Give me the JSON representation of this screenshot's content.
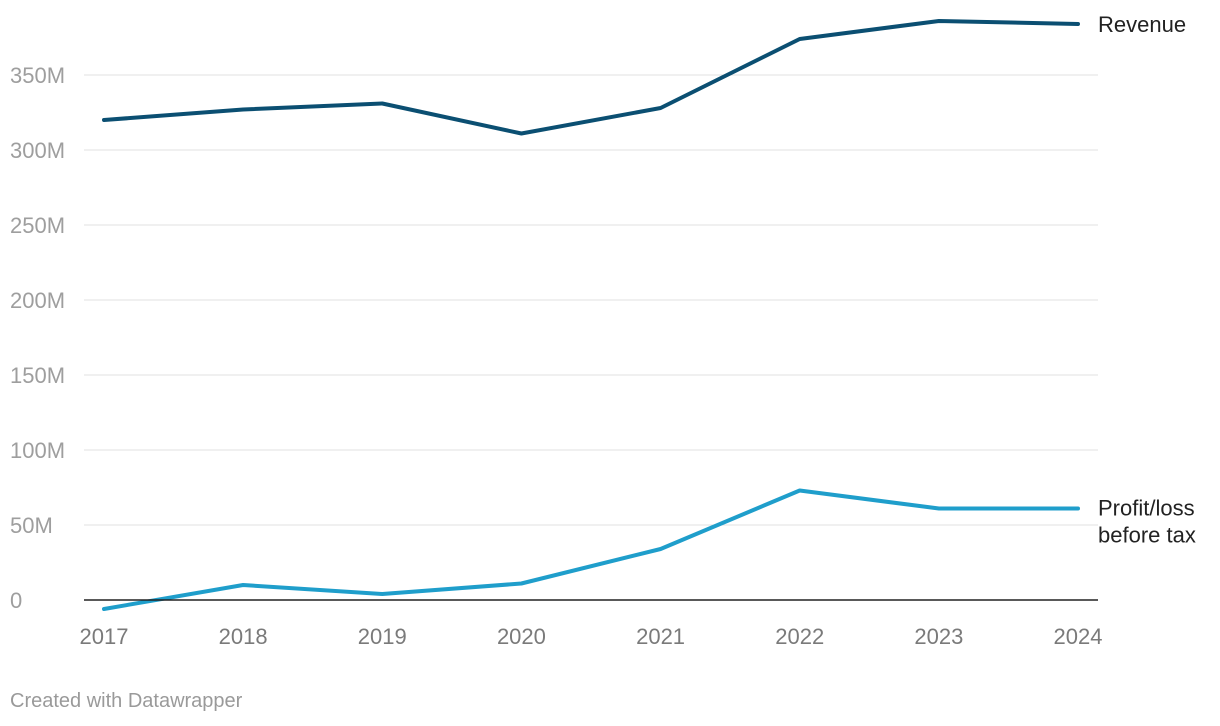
{
  "footer": {
    "credit": "Created with Datawrapper"
  },
  "colors": {
    "revenue": "#0b4f72",
    "profit": "#1f9ecb",
    "grid": "#e0e0e0",
    "baseline": "#222222"
  },
  "chart_data": {
    "type": "line",
    "x": [
      "2017",
      "2018",
      "2019",
      "2020",
      "2021",
      "2022",
      "2023",
      "2024"
    ],
    "ylim": [
      -7,
      385
    ],
    "y_ticks": [
      {
        "value": 0,
        "label": "0"
      },
      {
        "value": 50,
        "label": "50M"
      },
      {
        "value": 100,
        "label": "100M"
      },
      {
        "value": 150,
        "label": "150M"
      },
      {
        "value": 200,
        "label": "200M"
      },
      {
        "value": 250,
        "label": "250M"
      },
      {
        "value": 300,
        "label": "300M"
      },
      {
        "value": 350,
        "label": "350M"
      }
    ],
    "grid": true,
    "legend": "direct labels at line ends (right)",
    "series": [
      {
        "name": "Revenue",
        "label_lines": [
          "Revenue"
        ],
        "color": "#0b4f72",
        "values": [
          320,
          327,
          331,
          311,
          328,
          374,
          386,
          384
        ]
      },
      {
        "name": "Profit/loss before tax",
        "label_lines": [
          "Profit/loss",
          "before tax"
        ],
        "color": "#1f9ecb",
        "values": [
          -6,
          10,
          4,
          11,
          34,
          73,
          61,
          61
        ]
      }
    ]
  }
}
